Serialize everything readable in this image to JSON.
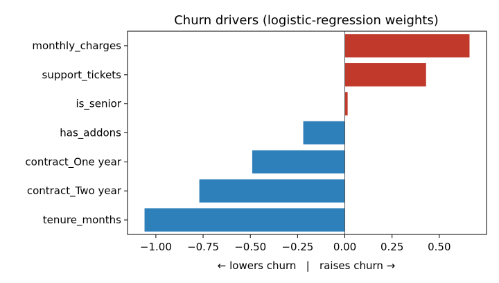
{
  "chart_data": {
    "type": "bar",
    "orientation": "horizontal",
    "title": "Churn drivers (logistic-regression weights)",
    "xlabel": "← lowers churn   |   raises churn →",
    "ylabel": "",
    "categories": [
      "monthly_charges",
      "support_tickets",
      "is_senior",
      "has_addons",
      "contract_One year",
      "contract_Two year",
      "tenure_months"
    ],
    "values": [
      0.66,
      0.43,
      0.015,
      -0.22,
      -0.49,
      -0.77,
      -1.06
    ],
    "xlim": [
      -1.15,
      0.75
    ],
    "xticks": [
      -1.0,
      -0.75,
      -0.5,
      -0.25,
      0.0,
      0.25,
      0.5
    ],
    "xtick_labels": [
      "−1.00",
      "−0.75",
      "−0.50",
      "−0.25",
      "0.00",
      "0.25",
      "0.50"
    ],
    "positive_color": "#c0392b",
    "negative_color": "#2e80bb",
    "grid": false,
    "legend": "none"
  }
}
